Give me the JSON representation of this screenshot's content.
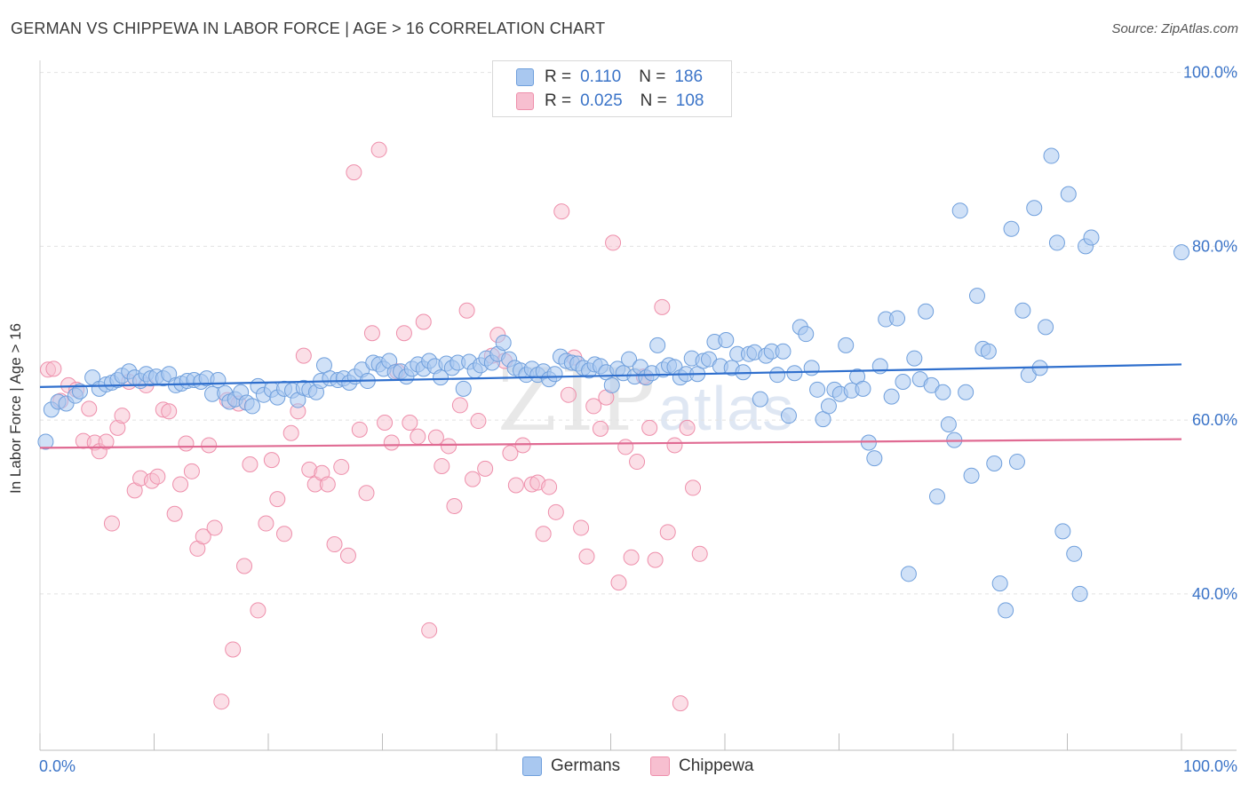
{
  "title": "GERMAN VS CHIPPEWA IN LABOR FORCE | AGE > 16 CORRELATION CHART",
  "source": "Source: ZipAtlas.com",
  "watermark": {
    "zip": "ZIP",
    "atlas": "atlas"
  },
  "legend": {
    "rows": [
      {
        "r_label": "R =",
        "r_value": "0.110",
        "n_label": "N =",
        "n_value": "186"
      },
      {
        "r_label": "R =",
        "r_value": "0.025",
        "n_label": "N =",
        "n_value": "108"
      }
    ]
  },
  "bottom_legend": [
    "Germans",
    "Chippewa"
  ],
  "colors": {
    "germans_fill": "#a9c8f0",
    "germans_stroke": "#6f9fdc",
    "germans_line": "#2f6fcd",
    "chippewa_fill": "#f7bfd0",
    "chippewa_stroke": "#ee8fab",
    "chippewa_line": "#e06b93",
    "tick_text": "#3b74c8",
    "grid": "#e2e2e2"
  },
  "chart_data": {
    "type": "scatter",
    "title": "GERMAN VS CHIPPEWA IN LABOR FORCE | AGE > 16 CORRELATION CHART",
    "xlabel": "",
    "ylabel": "In Labor Force | Age > 16",
    "xlim": [
      0,
      100
    ],
    "ylim": [
      22,
      102
    ],
    "x_tick_labels": [
      "0.0%",
      "100.0%"
    ],
    "y_ticks": [
      40,
      60,
      80,
      100
    ],
    "y_tick_labels": [
      "40.0%",
      "60.0%",
      "80.0%",
      "100.0%"
    ],
    "grid": true,
    "legend_position": "top-center",
    "series": [
      {
        "name": "Germans",
        "R": 0.11,
        "N": 186,
        "trend": {
          "x": [
            0,
            100
          ],
          "y": [
            63.8,
            66.4
          ]
        },
        "points": [
          [
            0.5,
            57.5
          ],
          [
            1,
            61.2
          ],
          [
            1.6,
            62.1
          ],
          [
            2.3,
            61.9
          ],
          [
            3.1,
            62.8
          ],
          [
            3.5,
            63.3
          ],
          [
            4.6,
            64.9
          ],
          [
            5.2,
            63.6
          ],
          [
            5.8,
            64.1
          ],
          [
            6.3,
            64.3
          ],
          [
            6.8,
            64.6
          ],
          [
            7.2,
            65.1
          ],
          [
            7.8,
            65.6
          ],
          [
            8.3,
            64.9
          ],
          [
            8.8,
            64.5
          ],
          [
            9.3,
            65.3
          ],
          [
            9.7,
            64.8
          ],
          [
            10.2,
            65.0
          ],
          [
            10.8,
            64.8
          ],
          [
            11.3,
            65.3
          ],
          [
            11.9,
            64.0
          ],
          [
            12.4,
            64.2
          ],
          [
            12.9,
            64.5
          ],
          [
            13.5,
            64.6
          ],
          [
            14.1,
            64.4
          ],
          [
            14.6,
            64.8
          ],
          [
            15.1,
            63.0
          ],
          [
            15.6,
            64.6
          ],
          [
            16.2,
            63.1
          ],
          [
            16.6,
            62.1
          ],
          [
            17.1,
            62.4
          ],
          [
            17.6,
            63.2
          ],
          [
            18.1,
            62.0
          ],
          [
            18.6,
            61.6
          ],
          [
            19.1,
            63.9
          ],
          [
            19.6,
            62.9
          ],
          [
            20.3,
            63.5
          ],
          [
            20.8,
            62.6
          ],
          [
            21.4,
            63.6
          ],
          [
            22.1,
            63.4
          ],
          [
            22.6,
            62.3
          ],
          [
            23.1,
            63.7
          ],
          [
            23.6,
            63.5
          ],
          [
            24.2,
            63.2
          ],
          [
            24.6,
            64.5
          ],
          [
            24.9,
            66.3
          ],
          [
            25.4,
            64.8
          ],
          [
            26.1,
            64.6
          ],
          [
            26.6,
            64.8
          ],
          [
            27.1,
            64.3
          ],
          [
            27.6,
            65.0
          ],
          [
            28.2,
            65.8
          ],
          [
            28.7,
            64.5
          ],
          [
            29.2,
            66.6
          ],
          [
            29.7,
            66.4
          ],
          [
            30.1,
            65.9
          ],
          [
            30.6,
            66.8
          ],
          [
            31.1,
            65.5
          ],
          [
            31.6,
            65.6
          ],
          [
            32.1,
            65.0
          ],
          [
            32.6,
            65.9
          ],
          [
            33.1,
            66.4
          ],
          [
            33.6,
            65.9
          ],
          [
            34.1,
            66.8
          ],
          [
            34.6,
            66.2
          ],
          [
            35.1,
            64.9
          ],
          [
            35.6,
            66.5
          ],
          [
            36.1,
            66.0
          ],
          [
            36.6,
            66.6
          ],
          [
            37.1,
            63.6
          ],
          [
            37.6,
            66.7
          ],
          [
            38.1,
            65.7
          ],
          [
            38.6,
            66.3
          ],
          [
            39.1,
            67.1
          ],
          [
            39.6,
            66.6
          ],
          [
            40.1,
            67.6
          ],
          [
            40.6,
            68.9
          ],
          [
            41.1,
            67.0
          ],
          [
            41.6,
            66.0
          ],
          [
            42.1,
            65.7
          ],
          [
            42.6,
            65.2
          ],
          [
            43.1,
            65.9
          ],
          [
            43.6,
            65.2
          ],
          [
            44.1,
            65.6
          ],
          [
            44.6,
            64.7
          ],
          [
            45.1,
            65.3
          ],
          [
            45.6,
            67.3
          ],
          [
            46.1,
            66.8
          ],
          [
            46.6,
            66.6
          ],
          [
            47.1,
            66.5
          ],
          [
            47.6,
            66.0
          ],
          [
            48.1,
            65.7
          ],
          [
            48.6,
            66.4
          ],
          [
            49.1,
            66.2
          ],
          [
            49.6,
            65.5
          ],
          [
            50.1,
            64.0
          ],
          [
            50.6,
            65.9
          ],
          [
            51.1,
            65.4
          ],
          [
            51.6,
            67.0
          ],
          [
            52.1,
            65.0
          ],
          [
            52.6,
            66.1
          ],
          [
            53.1,
            64.9
          ],
          [
            53.6,
            65.4
          ],
          [
            54.1,
            68.6
          ],
          [
            54.6,
            65.8
          ],
          [
            55.1,
            66.3
          ],
          [
            55.6,
            66.1
          ],
          [
            56.1,
            64.9
          ],
          [
            56.6,
            65.3
          ],
          [
            57.1,
            67.1
          ],
          [
            57.6,
            65.3
          ],
          [
            58.1,
            66.8
          ],
          [
            58.6,
            67.0
          ],
          [
            59.1,
            69.0
          ],
          [
            59.6,
            66.2
          ],
          [
            60.1,
            69.2
          ],
          [
            60.6,
            66.0
          ],
          [
            61.1,
            67.6
          ],
          [
            61.6,
            65.5
          ],
          [
            62.1,
            67.6
          ],
          [
            62.6,
            67.8
          ],
          [
            63.1,
            62.4
          ],
          [
            63.6,
            67.4
          ],
          [
            64.1,
            67.9
          ],
          [
            64.6,
            65.2
          ],
          [
            65.1,
            67.9
          ],
          [
            65.6,
            60.5
          ],
          [
            66.1,
            65.4
          ],
          [
            66.6,
            70.7
          ],
          [
            67.1,
            69.9
          ],
          [
            67.6,
            66.0
          ],
          [
            68.1,
            63.5
          ],
          [
            68.6,
            60.1
          ],
          [
            69.1,
            61.6
          ],
          [
            69.6,
            63.5
          ],
          [
            70.1,
            63.0
          ],
          [
            70.6,
            68.6
          ],
          [
            71.1,
            63.4
          ],
          [
            71.6,
            65.0
          ],
          [
            72.1,
            63.6
          ],
          [
            72.6,
            57.4
          ],
          [
            73.1,
            55.6
          ],
          [
            73.6,
            66.2
          ],
          [
            74.1,
            71.6
          ],
          [
            74.6,
            62.7
          ],
          [
            75.1,
            71.7
          ],
          [
            75.6,
            64.4
          ],
          [
            76.1,
            42.3
          ],
          [
            76.6,
            67.1
          ],
          [
            77.1,
            64.7
          ],
          [
            77.6,
            72.5
          ],
          [
            78.1,
            64.0
          ],
          [
            78.6,
            51.2
          ],
          [
            79.1,
            63.2
          ],
          [
            79.6,
            59.5
          ],
          [
            80.1,
            57.7
          ],
          [
            80.6,
            84.1
          ],
          [
            81.1,
            63.2
          ],
          [
            81.6,
            53.6
          ],
          [
            82.1,
            74.3
          ],
          [
            82.6,
            68.2
          ],
          [
            83.1,
            67.9
          ],
          [
            83.6,
            55.0
          ],
          [
            84.1,
            41.2
          ],
          [
            84.6,
            38.1
          ],
          [
            85.1,
            82.0
          ],
          [
            85.6,
            55.2
          ],
          [
            86.1,
            72.6
          ],
          [
            86.6,
            65.2
          ],
          [
            87.1,
            84.4
          ],
          [
            87.6,
            66.0
          ],
          [
            88.1,
            70.7
          ],
          [
            88.6,
            90.4
          ],
          [
            89.1,
            80.4
          ],
          [
            89.6,
            47.2
          ],
          [
            90.1,
            86.0
          ],
          [
            90.6,
            44.6
          ],
          [
            91.1,
            40.0
          ],
          [
            91.6,
            80.0
          ],
          [
            92.1,
            81.0
          ],
          [
            100,
            79.3
          ]
        ]
      },
      {
        "name": "Chippewa",
        "R": 0.025,
        "N": 108,
        "trend": {
          "x": [
            0,
            100
          ],
          "y": [
            56.8,
            57.8
          ]
        },
        "points": [
          [
            0.7,
            65.8
          ],
          [
            1.2,
            65.9
          ],
          [
            1.8,
            62.2
          ],
          [
            2.5,
            64.0
          ],
          [
            3.2,
            63.5
          ],
          [
            3.8,
            57.6
          ],
          [
            4.3,
            61.3
          ],
          [
            4.8,
            57.4
          ],
          [
            5.2,
            56.4
          ],
          [
            5.8,
            57.5
          ],
          [
            6.3,
            48.1
          ],
          [
            6.8,
            59.1
          ],
          [
            7.2,
            60.5
          ],
          [
            7.8,
            64.4
          ],
          [
            8.3,
            51.9
          ],
          [
            8.8,
            53.3
          ],
          [
            9.3,
            64.0
          ],
          [
            9.8,
            53.0
          ],
          [
            10.3,
            53.5
          ],
          [
            10.8,
            61.2
          ],
          [
            11.3,
            61.0
          ],
          [
            11.8,
            49.2
          ],
          [
            12.3,
            52.6
          ],
          [
            12.8,
            57.3
          ],
          [
            13.3,
            54.1
          ],
          [
            13.8,
            45.2
          ],
          [
            14.3,
            46.6
          ],
          [
            14.8,
            57.1
          ],
          [
            15.3,
            47.6
          ],
          [
            15.9,
            27.6
          ],
          [
            16.4,
            62.3
          ],
          [
            16.9,
            33.6
          ],
          [
            17.4,
            61.9
          ],
          [
            17.9,
            43.2
          ],
          [
            18.4,
            54.9
          ],
          [
            19.1,
            38.1
          ],
          [
            19.8,
            48.1
          ],
          [
            20.3,
            55.4
          ],
          [
            20.8,
            50.9
          ],
          [
            21.4,
            46.9
          ],
          [
            22.0,
            58.5
          ],
          [
            22.6,
            61.0
          ],
          [
            23.1,
            67.4
          ],
          [
            23.6,
            54.3
          ],
          [
            24.1,
            52.6
          ],
          [
            24.7,
            53.9
          ],
          [
            25.2,
            52.6
          ],
          [
            25.8,
            45.7
          ],
          [
            26.4,
            54.6
          ],
          [
            27.0,
            44.4
          ],
          [
            27.5,
            88.5
          ],
          [
            28.0,
            58.9
          ],
          [
            28.6,
            51.6
          ],
          [
            29.1,
            70.0
          ],
          [
            29.7,
            91.1
          ],
          [
            30.2,
            59.7
          ],
          [
            30.8,
            57.4
          ],
          [
            31.3,
            65.6
          ],
          [
            31.9,
            70.0
          ],
          [
            32.4,
            59.7
          ],
          [
            33.1,
            58.1
          ],
          [
            33.6,
            71.3
          ],
          [
            34.1,
            35.8
          ],
          [
            34.7,
            58.0
          ],
          [
            35.2,
            54.7
          ],
          [
            35.8,
            57.0
          ],
          [
            36.3,
            50.1
          ],
          [
            36.8,
            61.7
          ],
          [
            37.4,
            72.6
          ],
          [
            37.9,
            53.2
          ],
          [
            38.4,
            59.9
          ],
          [
            39.0,
            54.4
          ],
          [
            39.6,
            67.4
          ],
          [
            40.1,
            69.8
          ],
          [
            40.7,
            66.8
          ],
          [
            41.2,
            56.2
          ],
          [
            41.7,
            52.5
          ],
          [
            42.3,
            57.1
          ],
          [
            43.1,
            52.6
          ],
          [
            43.6,
            52.8
          ],
          [
            44.1,
            46.9
          ],
          [
            44.6,
            52.3
          ],
          [
            45.2,
            49.4
          ],
          [
            45.7,
            84.0
          ],
          [
            46.3,
            62.9
          ],
          [
            46.8,
            67.2
          ],
          [
            47.4,
            47.6
          ],
          [
            47.9,
            44.3
          ],
          [
            48.5,
            61.6
          ],
          [
            49.1,
            59.0
          ],
          [
            49.6,
            62.6
          ],
          [
            50.2,
            80.4
          ],
          [
            50.7,
            41.3
          ],
          [
            51.3,
            56.9
          ],
          [
            51.8,
            44.2
          ],
          [
            52.3,
            55.2
          ],
          [
            52.9,
            65.0
          ],
          [
            53.4,
            59.1
          ],
          [
            53.9,
            43.9
          ],
          [
            54.5,
            73.0
          ],
          [
            55.0,
            47.1
          ],
          [
            55.6,
            57.1
          ],
          [
            56.1,
            27.4
          ],
          [
            56.7,
            59.1
          ],
          [
            57.2,
            52.2
          ],
          [
            57.8,
            44.6
          ]
        ]
      }
    ]
  }
}
